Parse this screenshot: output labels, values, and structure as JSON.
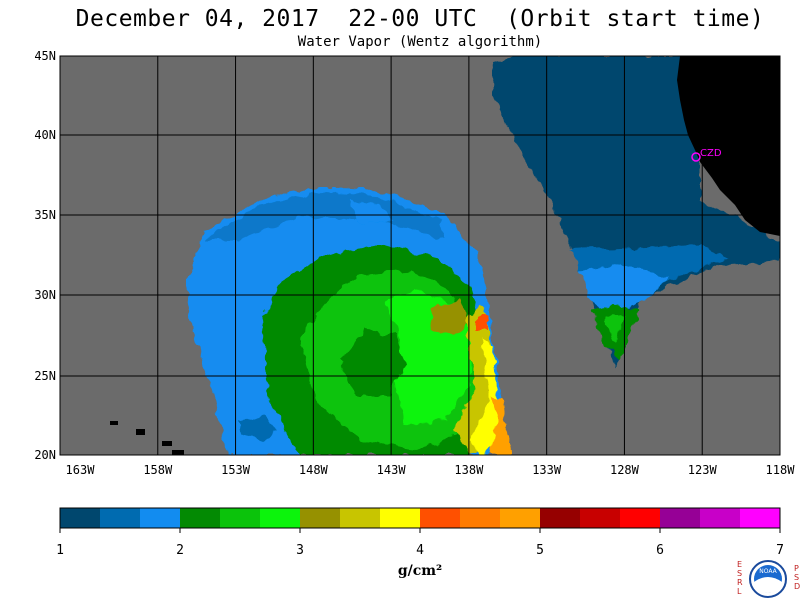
{
  "title": "December 04, 2017  22-00 UTC  (Orbit start time)",
  "subtitle": "Water Vapor (Wentz algorithm)",
  "lat_labels": [
    "45N",
    "40N",
    "35N",
    "30N",
    "25N",
    "20N"
  ],
  "lon_labels": [
    "163W",
    "158W",
    "153W",
    "148W",
    "143W",
    "138W",
    "133W",
    "128W",
    "123W",
    "118W"
  ],
  "station_label": "CZD",
  "colorbar": {
    "ticks": [
      "1",
      "2",
      "3",
      "4",
      "5",
      "6",
      "7"
    ],
    "unit": "g/cm²",
    "colors": [
      "#00476e",
      "#006bb0",
      "#128cf0",
      "#038a03",
      "#0bc30b",
      "#0cf40c",
      "#969100",
      "#c8c500",
      "#ffff00",
      "#ff5000",
      "#ff7c00",
      "#ffa000",
      "#960000",
      "#c80000",
      "#ff0000",
      "#960096",
      "#c800c8",
      "#ff00ff"
    ]
  },
  "colors": {
    "no_data": "#6b6b6b",
    "land": "#000000",
    "grid": "#000000",
    "station": "#ff00ff"
  },
  "logo": {
    "left_letters": [
      "E",
      "S",
      "R",
      "L"
    ],
    "right_letters": [
      "P",
      "S",
      "D"
    ],
    "emblem_text": "NOAA"
  }
}
